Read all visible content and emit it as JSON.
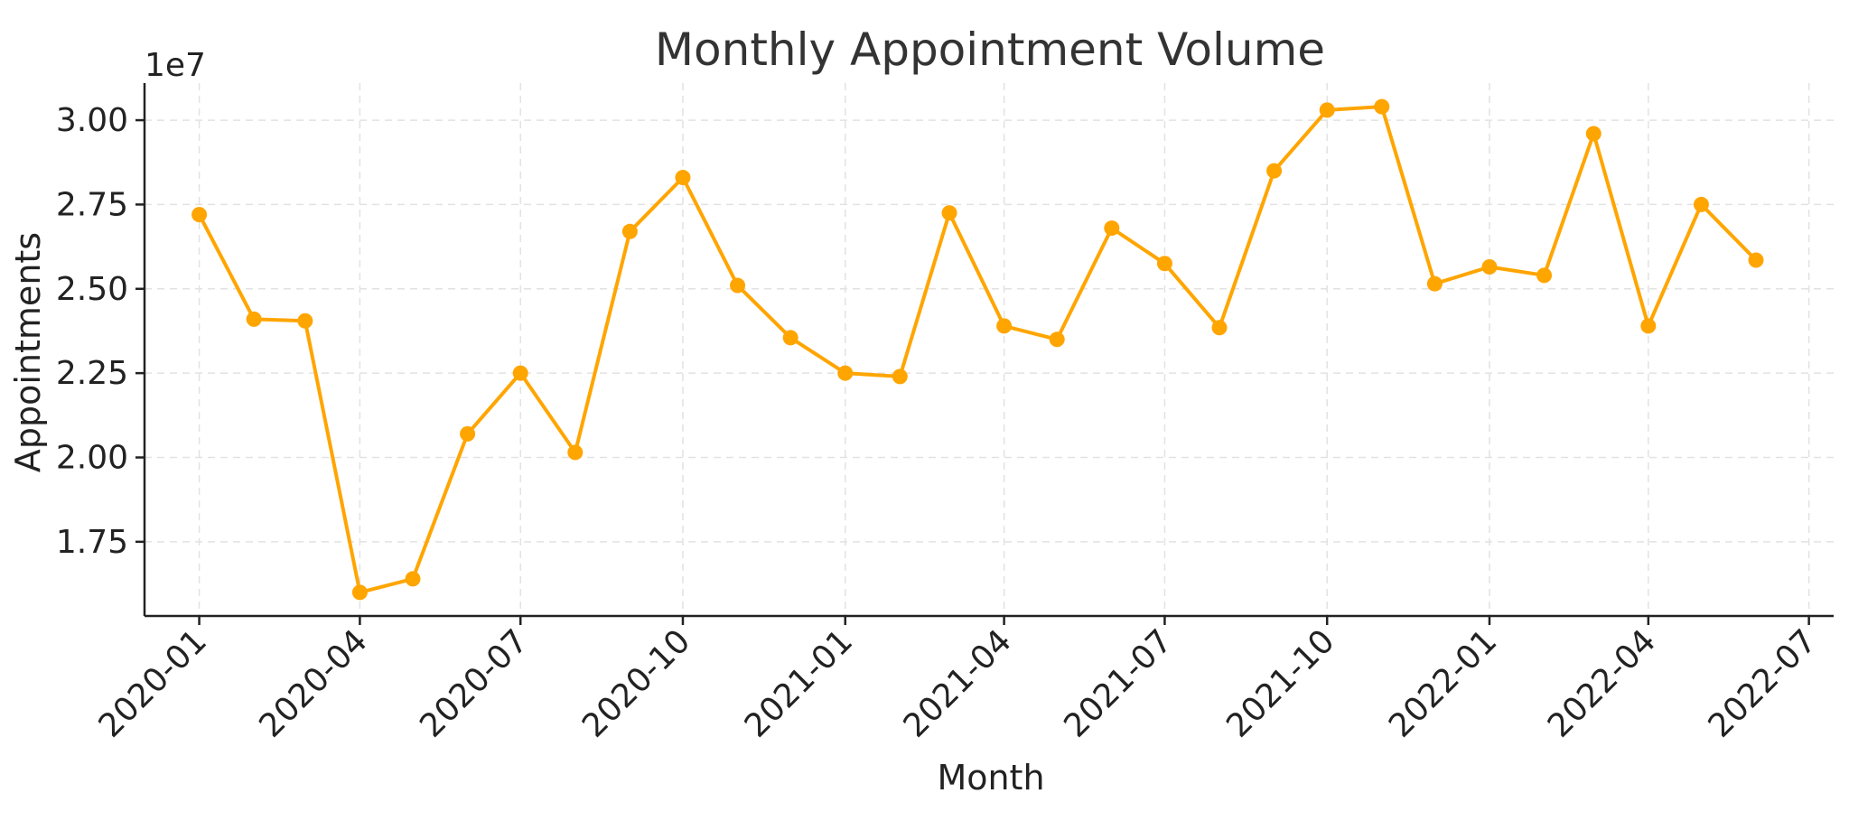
{
  "chart_data": {
    "type": "line",
    "title": "Monthly Appointment Volume",
    "xlabel": "Month",
    "ylabel": "Appointments",
    "y_offset_label": "1e7",
    "y_scale": 10000000,
    "ylim": [
      1.53,
      3.11
    ],
    "yticks": [
      1.75,
      2.0,
      2.25,
      2.5,
      2.75,
      3.0
    ],
    "ytick_labels": [
      "1.75",
      "2.00",
      "2.25",
      "2.50",
      "2.75",
      "3.00"
    ],
    "xlim": [
      "2019-12-01",
      "2022-07-15"
    ],
    "xticks": [
      "2020-01-01",
      "2020-04-01",
      "2020-07-01",
      "2020-10-01",
      "2021-01-01",
      "2021-04-01",
      "2021-07-01",
      "2021-10-01",
      "2022-01-01",
      "2022-04-01",
      "2022-07-01"
    ],
    "xtick_labels": [
      "2020-01",
      "2020-04",
      "2020-07",
      "2020-10",
      "2021-01",
      "2021-04",
      "2021-07",
      "2021-10",
      "2022-01",
      "2022-04",
      "2022-07"
    ],
    "grid": true,
    "color": "#FFA500",
    "x": [
      "2020-01-01",
      "2020-02-01",
      "2020-03-01",
      "2020-04-01",
      "2020-05-01",
      "2020-06-01",
      "2020-07-01",
      "2020-08-01",
      "2020-09-01",
      "2020-10-01",
      "2020-11-01",
      "2020-12-01",
      "2021-01-01",
      "2021-02-01",
      "2021-03-01",
      "2021-04-01",
      "2021-05-01",
      "2021-06-01",
      "2021-07-01",
      "2021-08-01",
      "2021-09-01",
      "2021-10-01",
      "2021-11-01",
      "2021-12-01",
      "2022-01-01",
      "2022-02-01",
      "2022-03-01",
      "2022-04-01",
      "2022-05-01",
      "2022-06-01"
    ],
    "values": [
      27200000,
      24100000,
      24050000,
      16000000,
      16400000,
      20700000,
      22500000,
      20150000,
      26700000,
      28300000,
      25100000,
      23550000,
      22500000,
      22400000,
      27250000,
      23900000,
      23500000,
      26800000,
      25750000,
      23850000,
      28500000,
      30300000,
      30400000,
      25150000,
      25650000,
      25400000,
      29600000,
      23900000,
      27500000,
      25850000
    ]
  }
}
